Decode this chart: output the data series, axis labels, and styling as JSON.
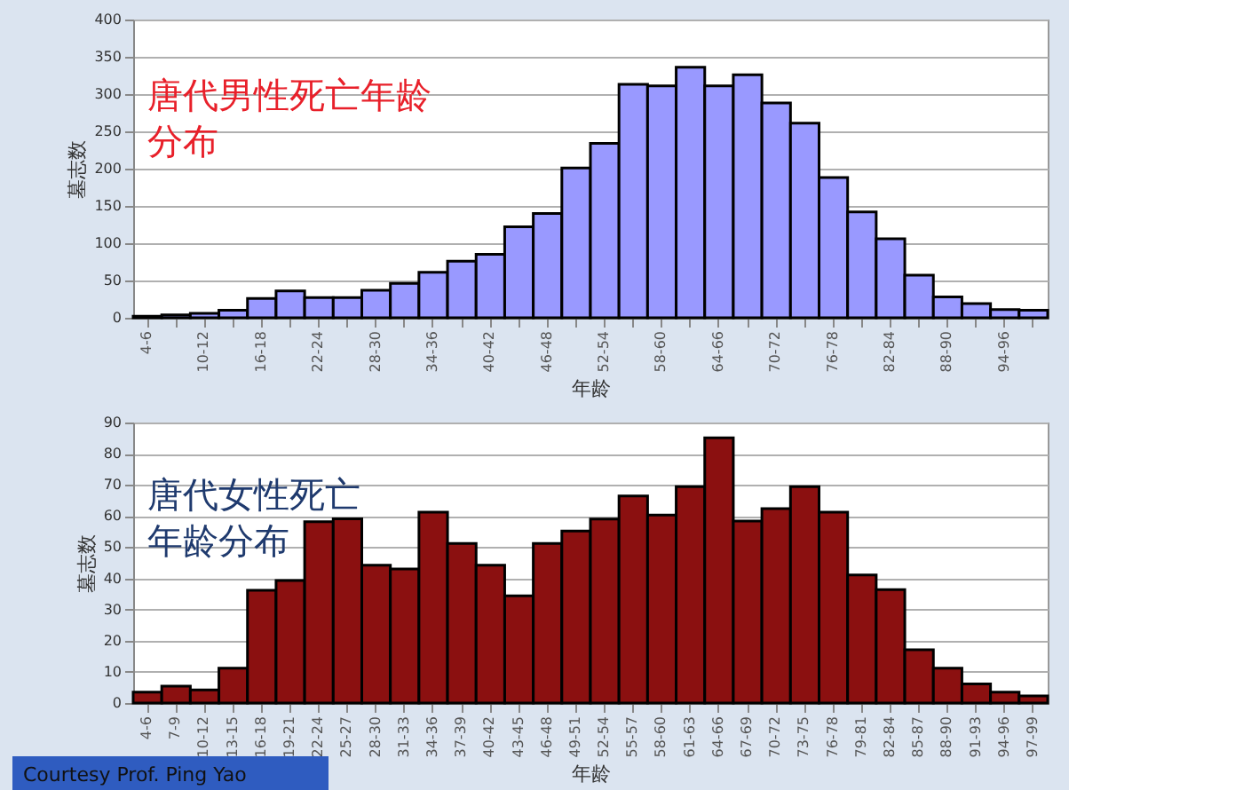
{
  "chart_data": [
    {
      "type": "bar",
      "xlabel": "年龄",
      "ylabel": "墓志数",
      "categories": [
        "4-6",
        null,
        "10-12",
        null,
        "16-18",
        null,
        "22-24",
        null,
        "28-30",
        null,
        "34-36",
        null,
        "40-42",
        null,
        "46-48",
        null,
        "52-54",
        null,
        "58-60",
        null,
        "64-66",
        null,
        "70-72",
        null,
        "76-78",
        null,
        "82-84",
        null,
        "88-90",
        null,
        "94-96",
        null
      ],
      "series": [
        {
          "color": "#9999ff",
          "values": [
            2,
            4,
            6,
            10,
            26,
            36,
            27,
            27,
            37,
            46,
            61,
            76,
            85,
            122,
            140,
            201,
            234,
            313,
            311,
            336,
            311,
            326,
            288,
            261,
            188,
            142,
            106,
            57,
            28,
            19,
            11,
            10
          ]
        }
      ],
      "ylim": [
        0,
        400
      ],
      "yticks": [
        0,
        50,
        100,
        150,
        200,
        250,
        300,
        350,
        400
      ],
      "grid": "y",
      "annotations": [
        "唐代男性死亡年龄分布"
      ]
    },
    {
      "type": "bar",
      "xlabel": "年龄",
      "ylabel": "墓志数",
      "categories": [
        "4-6",
        "7-9",
        "10-12",
        "13-15",
        "16-18",
        "19-21",
        "22-24",
        "25-27",
        "28-30",
        "31-33",
        "34-36",
        "37-39",
        "40-42",
        "43-45",
        "46-48",
        "49-51",
        "52-54",
        "55-57",
        "58-60",
        "61-63",
        "64-66",
        "67-69",
        "70-72",
        "73-75",
        "76-78",
        "79-81",
        "82-84",
        "85-87",
        "88-90",
        "91-93",
        "94-96",
        "97-99"
      ],
      "series": [
        {
          "color": "#8b1010",
          "values": [
            3.5,
            5.4,
            4.2,
            11.2,
            36.2,
            39.3,
            58.2,
            59.1,
            44.2,
            43,
            61.2,
            51.2,
            44.2,
            34.4,
            51.2,
            55.2,
            59,
            66.4,
            60.3,
            69.4,
            85.1,
            58.4,
            62.4,
            69.4,
            61.2,
            41.1,
            36.4,
            17.1,
            11.2,
            6.1,
            3.5,
            2.3
          ]
        }
      ],
      "ylim": [
        0,
        90
      ],
      "yticks": [
        0,
        10,
        20,
        30,
        40,
        50,
        60,
        70,
        80,
        90
      ],
      "grid": "y",
      "annotations": [
        "唐代女性死亡年龄分布",
        "Courtesy Prof. Ping Yao"
      ]
    }
  ]
}
